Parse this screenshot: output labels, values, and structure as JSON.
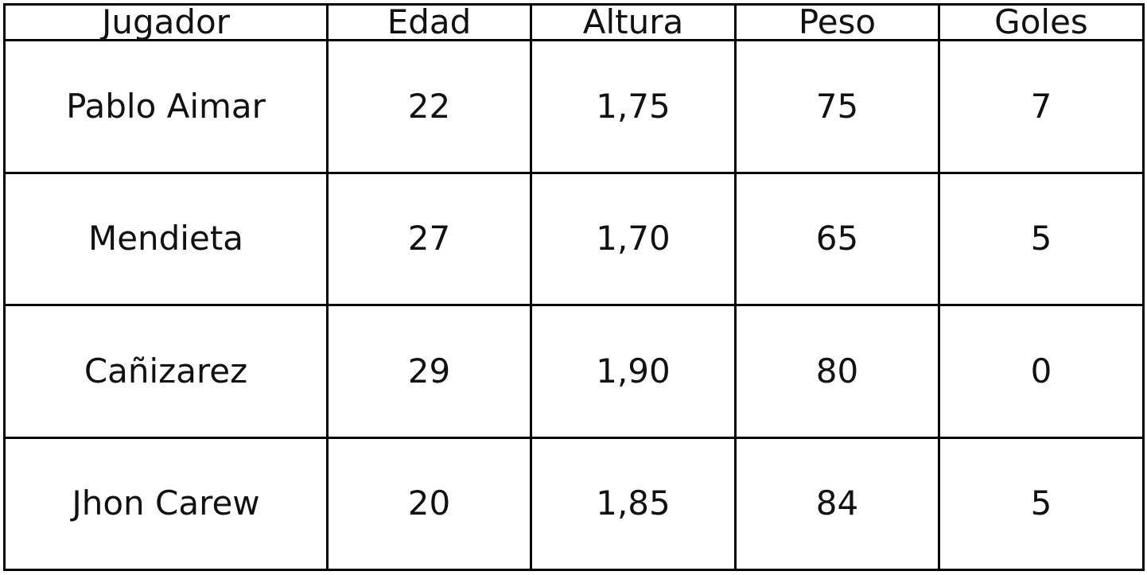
{
  "table": {
    "headers": [
      "Jugador",
      "Edad",
      "Altura",
      "Peso",
      "Goles"
    ],
    "rows": [
      [
        "Pablo Aimar",
        "22",
        "1,75",
        "75",
        "7"
      ],
      [
        "Mendieta",
        "27",
        "1,70",
        "65",
        "5"
      ],
      [
        "Cañizarez",
        "29",
        "1,90",
        "80",
        "0"
      ],
      [
        "Jhon Carew",
        "20",
        "1,85",
        "84",
        "5"
      ]
    ]
  }
}
